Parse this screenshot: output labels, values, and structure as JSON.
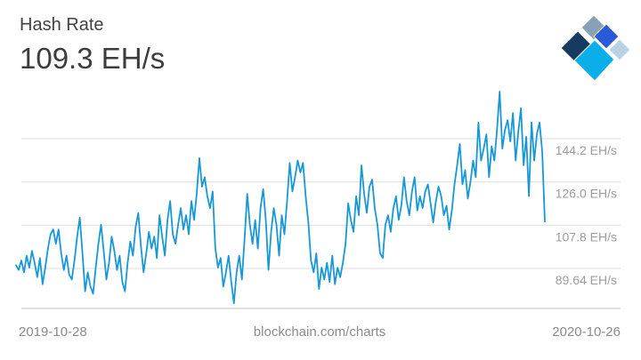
{
  "header": {
    "title": "Hash Rate",
    "value": "109.3 EH/s"
  },
  "logo": {
    "name": "blockchain-logo",
    "colors": {
      "navy": "#173A63",
      "slate": "#87A1B7",
      "blue": "#2A5AD7",
      "light_blue": "#B8D2E4",
      "cyan": "#0AAEE9"
    }
  },
  "chart_data": {
    "type": "line",
    "title": "Hash Rate",
    "current_value": 109.3,
    "unit": "EH/s",
    "x_start": "2019-10-28",
    "x_end": "2020-10-26",
    "line_color": "#1898D6",
    "grid": true,
    "grid_color": "#DEDEDE",
    "axis_line_color": "#CFCFCF",
    "tick_label_color": "#9C9C9C",
    "legend_position": "none",
    "y_ticks": [
      {
        "value": 144.2,
        "label": "144.2 EH/s"
      },
      {
        "value": 126.0,
        "label": "126.0 EH/s"
      },
      {
        "value": 107.8,
        "label": "107.8 EH/s"
      },
      {
        "value": 89.64,
        "label": "89.64 EH/s"
      }
    ],
    "ylim_implied": [
      72,
      166
    ],
    "values": [
      91,
      89,
      93,
      88,
      95,
      90,
      97,
      92,
      86,
      94,
      83,
      90,
      98,
      104,
      106,
      100,
      106,
      96,
      89,
      95,
      87,
      85,
      93,
      103,
      111,
      96,
      80,
      88,
      82,
      79,
      90,
      100,
      108,
      97,
      85,
      92,
      103,
      97,
      89,
      95,
      84,
      80,
      92,
      101,
      95,
      107,
      113,
      99,
      88,
      96,
      105,
      98,
      103,
      94,
      112,
      103,
      95,
      110,
      118,
      104,
      100,
      108,
      115,
      106,
      112,
      104,
      118,
      110,
      121,
      136,
      124,
      128,
      120,
      115,
      122,
      98,
      90,
      94,
      82,
      88,
      95,
      84,
      75,
      88,
      95,
      85,
      102,
      121,
      108,
      100,
      110,
      98,
      115,
      123,
      110,
      89,
      105,
      115,
      108,
      95,
      112,
      104,
      118,
      134,
      122,
      128,
      135,
      130,
      134,
      120,
      109,
      93,
      88,
      96,
      81,
      90,
      85,
      92,
      84,
      95,
      83,
      90,
      86,
      92,
      100,
      117,
      110,
      105,
      120,
      112,
      133,
      121,
      113,
      124,
      127,
      115,
      108,
      96,
      94,
      108,
      112,
      105,
      115,
      120,
      110,
      116,
      128,
      118,
      112,
      122,
      128,
      114,
      120,
      115,
      122,
      125,
      117,
      109,
      118,
      124,
      120,
      112,
      116,
      106,
      114,
      125,
      133,
      142,
      125,
      131,
      119,
      126,
      135,
      128,
      151,
      135,
      140,
      146,
      128,
      141,
      135,
      148,
      164,
      140,
      148,
      152,
      143,
      155,
      135,
      147,
      157,
      133,
      145,
      120,
      151,
      135,
      146,
      151,
      139,
      109.3
    ]
  },
  "footer": {
    "start_date": "2019-10-28",
    "source": "blockchain.com/charts",
    "end_date": "2020-10-26"
  }
}
